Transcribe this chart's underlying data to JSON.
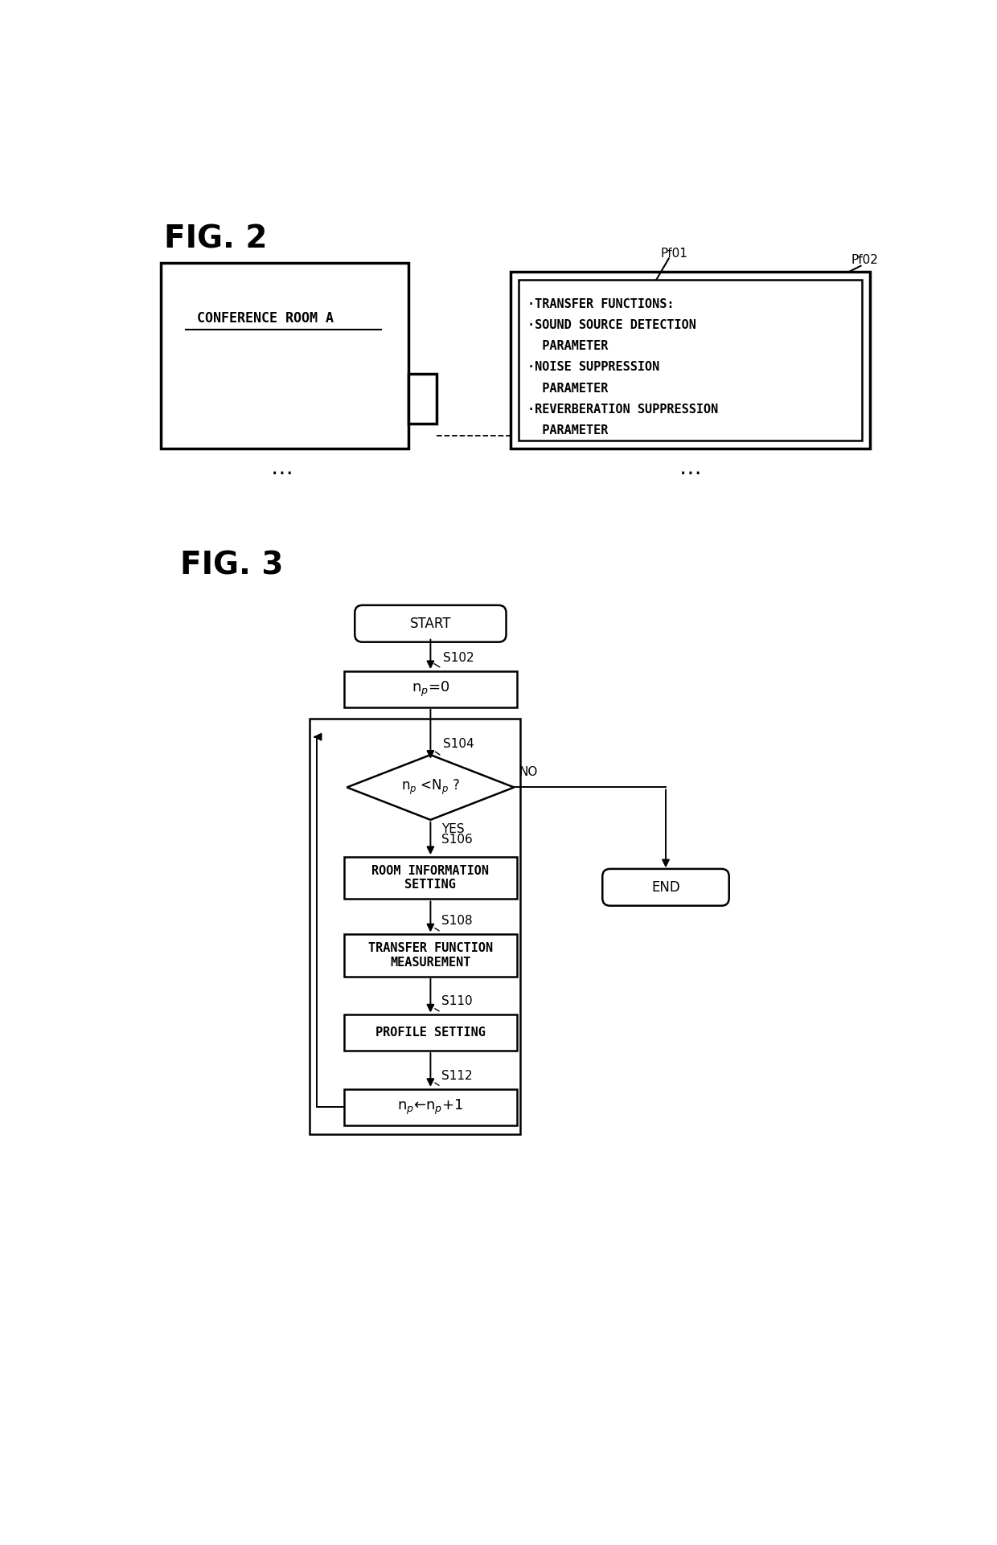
{
  "fig_width": 12.4,
  "fig_height": 19.22,
  "bg_color": "#ffffff",
  "fig2_label": "FIG. 2",
  "fig3_label": "FIG. 3",
  "conf_room_text": "CONFERENCE ROOM A",
  "profile_label1": "Pf01",
  "profile_label2": "Pf02",
  "profile_content": [
    "·TRANSFER FUNCTIONS:",
    "·SOUND SOURCE DETECTION",
    "  PARAMETER",
    "·NOISE SUPPRESSION",
    "  PARAMETER",
    "·REVERBERATION SUPPRESSION",
    "  PARAMETER"
  ],
  "flowchart_nodes": {
    "start": "START",
    "s102_label": "S102",
    "s102_text": "n$_p$=0",
    "s104_label": "S104",
    "s104_text": "n$_p$ <N$_p$ ?",
    "s104_yes": "YES",
    "s104_no": "NO",
    "s106_label": "S106",
    "s106_text": "ROOM INFORMATION\nSETTING",
    "s108_label": "S108",
    "s108_text": "TRANSFER FUNCTION\nMEASUREMENT",
    "s110_label": "S110",
    "s110_text": "PROFILE SETTING",
    "s112_label": "S112",
    "s112_text": "n$_p$←n$_p$+1",
    "end": "END"
  }
}
